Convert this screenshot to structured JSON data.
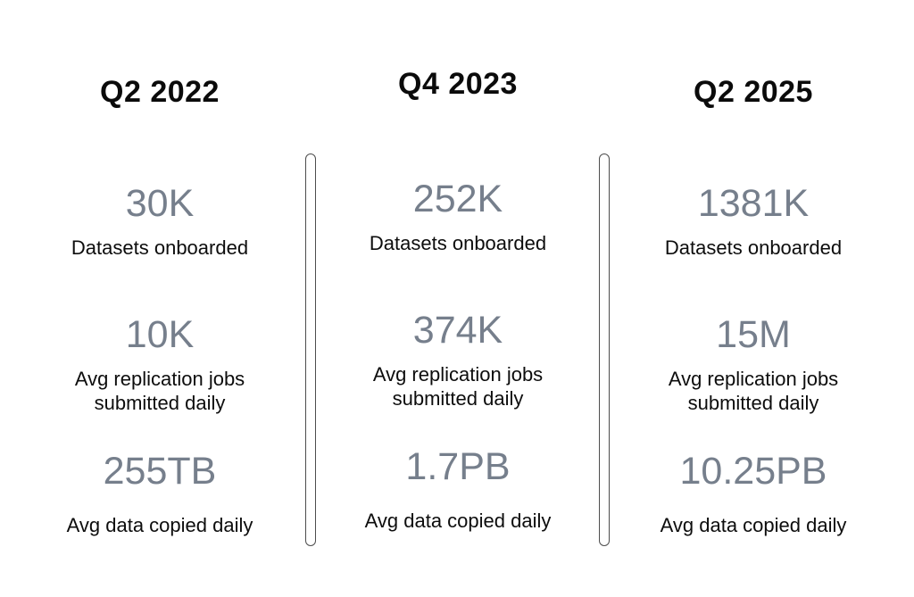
{
  "colors": {
    "value-color": "#767f8c",
    "divider-color": "#4d4d4d"
  },
  "columns": [
    {
      "title": "Q2 2022",
      "metrics": [
        {
          "value": "30K",
          "label": "Datasets onboarded"
        },
        {
          "value": "10K",
          "label": "Avg replication jobs submitted daily"
        },
        {
          "value": "255TB",
          "label": "Avg data copied daily"
        }
      ]
    },
    {
      "title": "Q4 2023",
      "metrics": [
        {
          "value": "252K",
          "label": "Datasets onboarded"
        },
        {
          "value": "374K",
          "label": "Avg replication jobs submitted daily"
        },
        {
          "value": "1.7PB",
          "label": "Avg data copied daily"
        }
      ]
    },
    {
      "title": "Q2 2025",
      "metrics": [
        {
          "value": "1381K",
          "label": "Datasets onboarded"
        },
        {
          "value": "15M",
          "label": "Avg replication jobs submitted daily"
        },
        {
          "value": "10.25PB",
          "label": "Avg data copied daily"
        }
      ]
    }
  ]
}
